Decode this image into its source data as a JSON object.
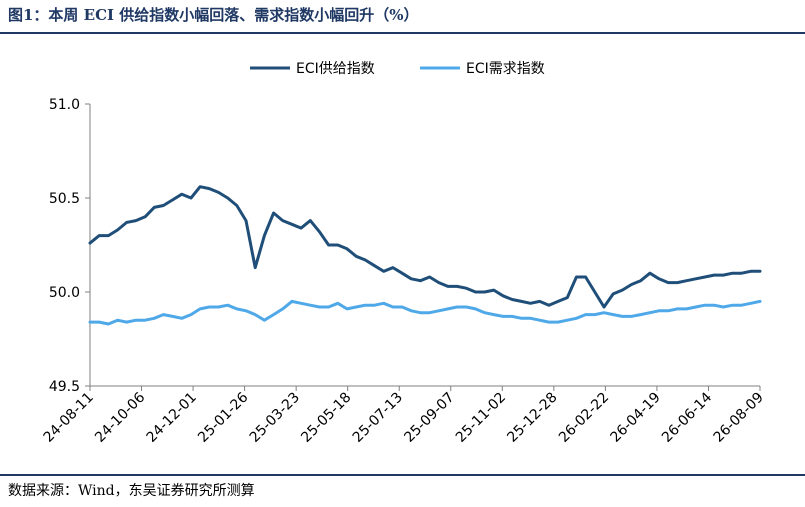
{
  "title": "图1：本周 ECI 供给指数小幅回落、需求指数小幅回升（%）",
  "source": "数据来源：Wind，东吴证券研究所测算",
  "chart_data": {
    "type": "line",
    "title": "图1：本周 ECI 供给指数小幅回落、需求指数小幅回升（%）",
    "xlabel": "",
    "ylabel": "",
    "ylim": [
      49.5,
      51.0
    ],
    "yticks": [
      "49.5",
      "50.0",
      "50.5",
      "51.0"
    ],
    "xticks": [
      "24-08-11",
      "24-10-06",
      "24-12-01",
      "25-01-26",
      "25-03-23",
      "25-05-18",
      "25-07-13",
      "25-09-07",
      "25-11-02",
      "25-12-28",
      "26-02-22",
      "26-04-19",
      "26-06-14",
      "26-08-09"
    ],
    "grid": false,
    "legend_position": "top-center",
    "series": [
      {
        "name": "ECI供给指数",
        "color": "#1F4E79",
        "values": [
          50.26,
          50.3,
          50.3,
          50.33,
          50.37,
          50.38,
          50.4,
          50.45,
          50.46,
          50.49,
          50.52,
          50.5,
          50.56,
          50.55,
          50.53,
          50.5,
          50.46,
          50.38,
          50.13,
          50.3,
          50.42,
          50.38,
          50.36,
          50.34,
          50.38,
          50.32,
          50.25,
          50.25,
          50.23,
          50.19,
          50.17,
          50.14,
          50.11,
          50.13,
          50.1,
          50.07,
          50.06,
          50.08,
          50.05,
          50.03,
          50.03,
          50.02,
          50.0,
          50.0,
          50.01,
          49.98,
          49.96,
          49.95,
          49.94,
          49.95,
          49.93,
          49.95,
          49.97,
          50.08,
          50.08,
          50.0,
          49.92,
          49.99,
          50.01,
          50.04,
          50.06,
          50.1,
          50.07,
          50.05,
          50.05,
          50.06,
          50.07,
          50.08,
          50.09,
          50.09,
          50.1,
          50.1,
          50.11,
          50.11
        ]
      },
      {
        "name": "ECI需求指数",
        "color": "#4FA8E8",
        "values": [
          49.84,
          49.84,
          49.83,
          49.85,
          49.84,
          49.85,
          49.85,
          49.86,
          49.88,
          49.87,
          49.86,
          49.88,
          49.91,
          49.92,
          49.92,
          49.93,
          49.91,
          49.9,
          49.88,
          49.85,
          49.88,
          49.91,
          49.95,
          49.94,
          49.93,
          49.92,
          49.92,
          49.94,
          49.91,
          49.92,
          49.93,
          49.93,
          49.94,
          49.92,
          49.92,
          49.9,
          49.89,
          49.89,
          49.9,
          49.91,
          49.92,
          49.92,
          49.91,
          49.89,
          49.88,
          49.87,
          49.87,
          49.86,
          49.86,
          49.85,
          49.84,
          49.84,
          49.85,
          49.86,
          49.88,
          49.88,
          49.89,
          49.88,
          49.87,
          49.87,
          49.88,
          49.89,
          49.9,
          49.9,
          49.91,
          49.91,
          49.92,
          49.93,
          49.93,
          49.92,
          49.93,
          49.93,
          49.94,
          49.95
        ]
      }
    ]
  }
}
